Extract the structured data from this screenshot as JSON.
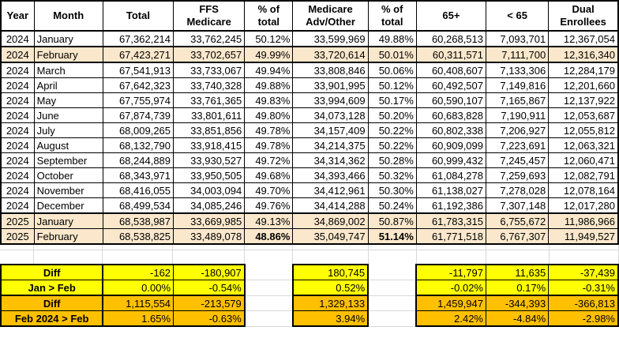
{
  "colors": {
    "highlight_row": "#FBE8CC",
    "summary_yellow": "#FFFF00",
    "summary_orange": "#FFC000",
    "gridline": "#D8D8D8",
    "border": "#000000"
  },
  "table": {
    "columns": [
      "Year",
      "Month",
      "Total",
      "FFS\nMedicare",
      "% of\ntotal",
      "Medicare\nAdv/Other",
      "% of\ntotal",
      "65+",
      "< 65",
      "Dual\nEnrollees"
    ],
    "rows": [
      {
        "year": "2024",
        "month": "January",
        "total": "67,362,214",
        "ffs": "33,762,245",
        "ffs_pct": "50.12%",
        "adv": "33,599,969",
        "adv_pct": "49.88%",
        "over65": "60,268,513",
        "under65": "7,093,701",
        "dual": "12,367,054",
        "highlight": false,
        "bold_pct": false
      },
      {
        "year": "2024",
        "month": "February",
        "total": "67,423,271",
        "ffs": "33,702,657",
        "ffs_pct": "49.99%",
        "adv": "33,720,614",
        "adv_pct": "50.01%",
        "over65": "60,311,571",
        "under65": "7,111,700",
        "dual": "12,316,340",
        "highlight": true,
        "bold_pct": false
      },
      {
        "year": "2024",
        "month": "March",
        "total": "67,541,913",
        "ffs": "33,733,067",
        "ffs_pct": "49.94%",
        "adv": "33,808,846",
        "adv_pct": "50.06%",
        "over65": "60,408,607",
        "under65": "7,133,306",
        "dual": "12,284,179",
        "highlight": false,
        "bold_pct": false
      },
      {
        "year": "2024",
        "month": "April",
        "total": "67,642,323",
        "ffs": "33,740,328",
        "ffs_pct": "49.88%",
        "adv": "33,901,995",
        "adv_pct": "50.12%",
        "over65": "60,492,507",
        "under65": "7,149,816",
        "dual": "12,201,660",
        "highlight": false,
        "bold_pct": false
      },
      {
        "year": "2024",
        "month": "May",
        "total": "67,755,974",
        "ffs": "33,761,365",
        "ffs_pct": "49.83%",
        "adv": "33,994,609",
        "adv_pct": "50.17%",
        "over65": "60,590,107",
        "under65": "7,165,867",
        "dual": "12,137,922",
        "highlight": false,
        "bold_pct": false
      },
      {
        "year": "2024",
        "month": "June",
        "total": "67,874,739",
        "ffs": "33,801,611",
        "ffs_pct": "49.80%",
        "adv": "34,073,128",
        "adv_pct": "50.20%",
        "over65": "60,683,828",
        "under65": "7,190,911",
        "dual": "12,053,687",
        "highlight": false,
        "bold_pct": false
      },
      {
        "year": "2024",
        "month": "July",
        "total": "68,009,265",
        "ffs": "33,851,856",
        "ffs_pct": "49.78%",
        "adv": "34,157,409",
        "adv_pct": "50.22%",
        "over65": "60,802,338",
        "under65": "7,206,927",
        "dual": "12,055,812",
        "highlight": false,
        "bold_pct": false
      },
      {
        "year": "2024",
        "month": "August",
        "total": "68,132,790",
        "ffs": "33,918,415",
        "ffs_pct": "49.78%",
        "adv": "34,214,375",
        "adv_pct": "50.22%",
        "over65": "60,909,099",
        "under65": "7,223,691",
        "dual": "12,063,321",
        "highlight": false,
        "bold_pct": false
      },
      {
        "year": "2024",
        "month": "September",
        "total": "68,244,889",
        "ffs": "33,930,527",
        "ffs_pct": "49.72%",
        "adv": "34,314,362",
        "adv_pct": "50.28%",
        "over65": "60,999,432",
        "under65": "7,245,457",
        "dual": "12,060,471",
        "highlight": false,
        "bold_pct": false
      },
      {
        "year": "2024",
        "month": "October",
        "total": "68,343,971",
        "ffs": "33,950,505",
        "ffs_pct": "49.68%",
        "adv": "34,393,466",
        "adv_pct": "50.32%",
        "over65": "61,084,278",
        "under65": "7,259,693",
        "dual": "12,082,791",
        "highlight": false,
        "bold_pct": false
      },
      {
        "year": "2024",
        "month": "November",
        "total": "68,416,055",
        "ffs": "34,003,094",
        "ffs_pct": "49.70%",
        "adv": "34,412,961",
        "adv_pct": "50.30%",
        "over65": "61,138,027",
        "under65": "7,278,028",
        "dual": "12,078,164",
        "highlight": false,
        "bold_pct": false
      },
      {
        "year": "2024",
        "month": "December",
        "total": "68,499,534",
        "ffs": "34,085,246",
        "ffs_pct": "49.76%",
        "adv": "34,414,288",
        "adv_pct": "50.24%",
        "over65": "61,192,386",
        "under65": "7,307,148",
        "dual": "12,017,280",
        "highlight": false,
        "bold_pct": false
      },
      {
        "year": "2025",
        "month": "January",
        "total": "68,538,987",
        "ffs": "33,669,985",
        "ffs_pct": "49.13%",
        "adv": "34,869,002",
        "adv_pct": "50.87%",
        "over65": "61,783,315",
        "under65": "6,755,672",
        "dual": "11,986,966",
        "highlight": true,
        "bold_pct": false
      },
      {
        "year": "2025",
        "month": "February",
        "total": "68,538,825",
        "ffs": "33,489,078",
        "ffs_pct": "48.86%",
        "adv": "35,049,747",
        "adv_pct": "51.14%",
        "over65": "61,771,518",
        "under65": "6,767,307",
        "dual": "11,949,527",
        "highlight": true,
        "bold_pct": true
      }
    ]
  },
  "summary": {
    "rows": [
      {
        "label": "Diff",
        "total": "-162",
        "ffs": "-180,907",
        "adv": "180,745",
        "over65": "-11,797",
        "under65": "11,635",
        "dual": "-37,439",
        "group": "yellow"
      },
      {
        "label": "Jan > Feb",
        "total": "0.00%",
        "ffs": "-0.54%",
        "adv": "0.52%",
        "over65": "-0.02%",
        "under65": "0.17%",
        "dual": "-0.31%",
        "group": "yellow"
      },
      {
        "label": "Diff",
        "total": "1,115,554",
        "ffs": "-213,579",
        "adv": "1,329,133",
        "over65": "1,459,947",
        "under65": "-344,393",
        "dual": "-366,813",
        "group": "orange"
      },
      {
        "label": "Feb 2024 > Feb",
        "total": "1.65%",
        "ffs": "-0.63%",
        "adv": "3.94%",
        "over65": "2.42%",
        "under65": "-4.84%",
        "dual": "-2.98%",
        "group": "orange"
      }
    ]
  }
}
